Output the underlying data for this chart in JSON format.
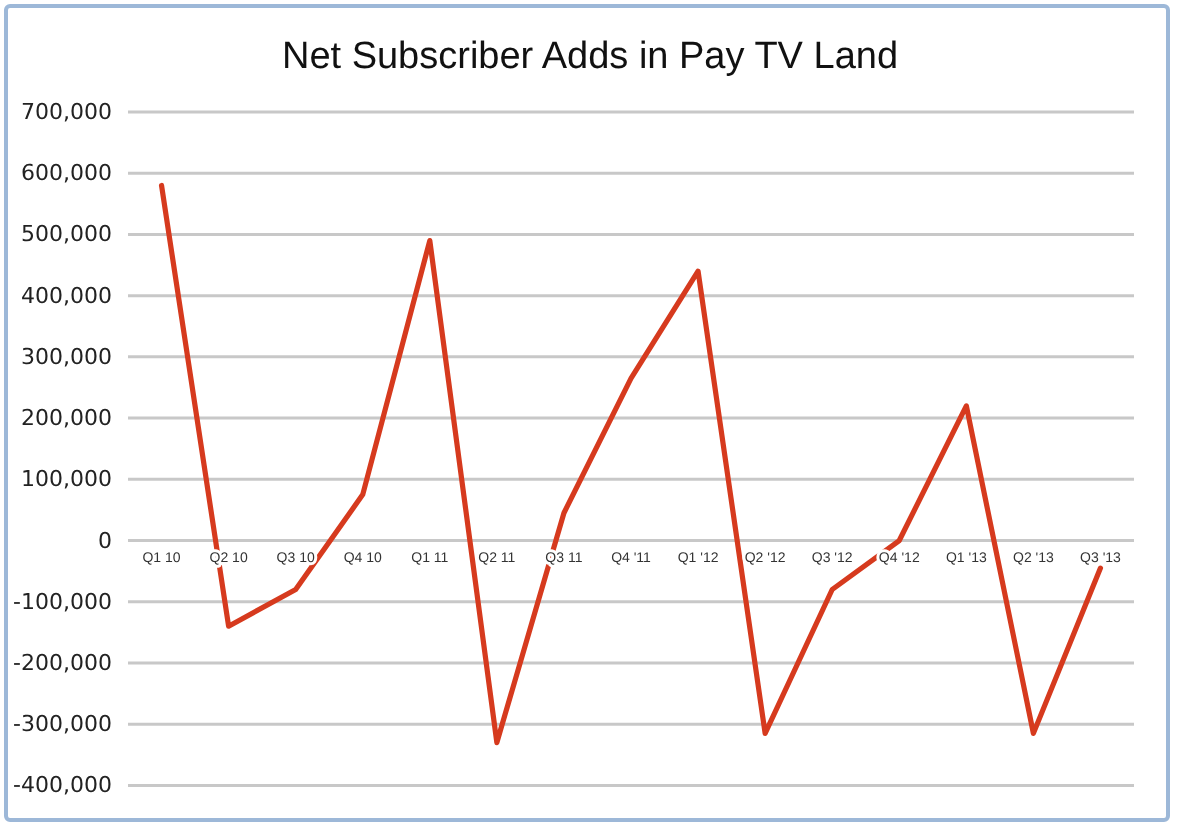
{
  "chart_data": {
    "type": "line",
    "title": "Net Subscriber Adds in Pay TV Land",
    "categories": [
      "Q1 10",
      "Q2 10",
      "Q3 10",
      "Q4 10",
      "Q1 11",
      "Q2 11",
      "Q3 11",
      "Q4 '11",
      "Q1 '12",
      "Q2 '12",
      "Q3 '12",
      "Q4 '12",
      "Q1 '13",
      "Q2 '13",
      "Q3 '13"
    ],
    "series": [
      {
        "color": "#d63a1e",
        "values": [
          580000,
          -140000,
          -80000,
          75000,
          490000,
          -330000,
          45000,
          265000,
          440000,
          -315000,
          -80000,
          0,
          220000,
          -315000,
          -45000
        ]
      }
    ],
    "ylim": [
      -400000,
      700000
    ],
    "yticks": [
      {
        "value": -400000,
        "label": "-400,000"
      },
      {
        "value": -300000,
        "label": "-300,000"
      },
      {
        "value": -200000,
        "label": "-200,000"
      },
      {
        "value": -100000,
        "label": "-100,000"
      },
      0,
      {
        "value": 100000,
        "label": "100,000"
      },
      {
        "value": 200000,
        "label": "200,000"
      },
      {
        "value": 300000,
        "label": "300,000"
      },
      {
        "value": 400000,
        "label": "400,000"
      },
      {
        "value": 500000,
        "label": "500,000"
      },
      {
        "value": 600000,
        "label": "600,000"
      },
      {
        "value": 700000,
        "label": "700,000"
      }
    ],
    "grid": "y",
    "marker": "none",
    "line_style": "solid"
  }
}
